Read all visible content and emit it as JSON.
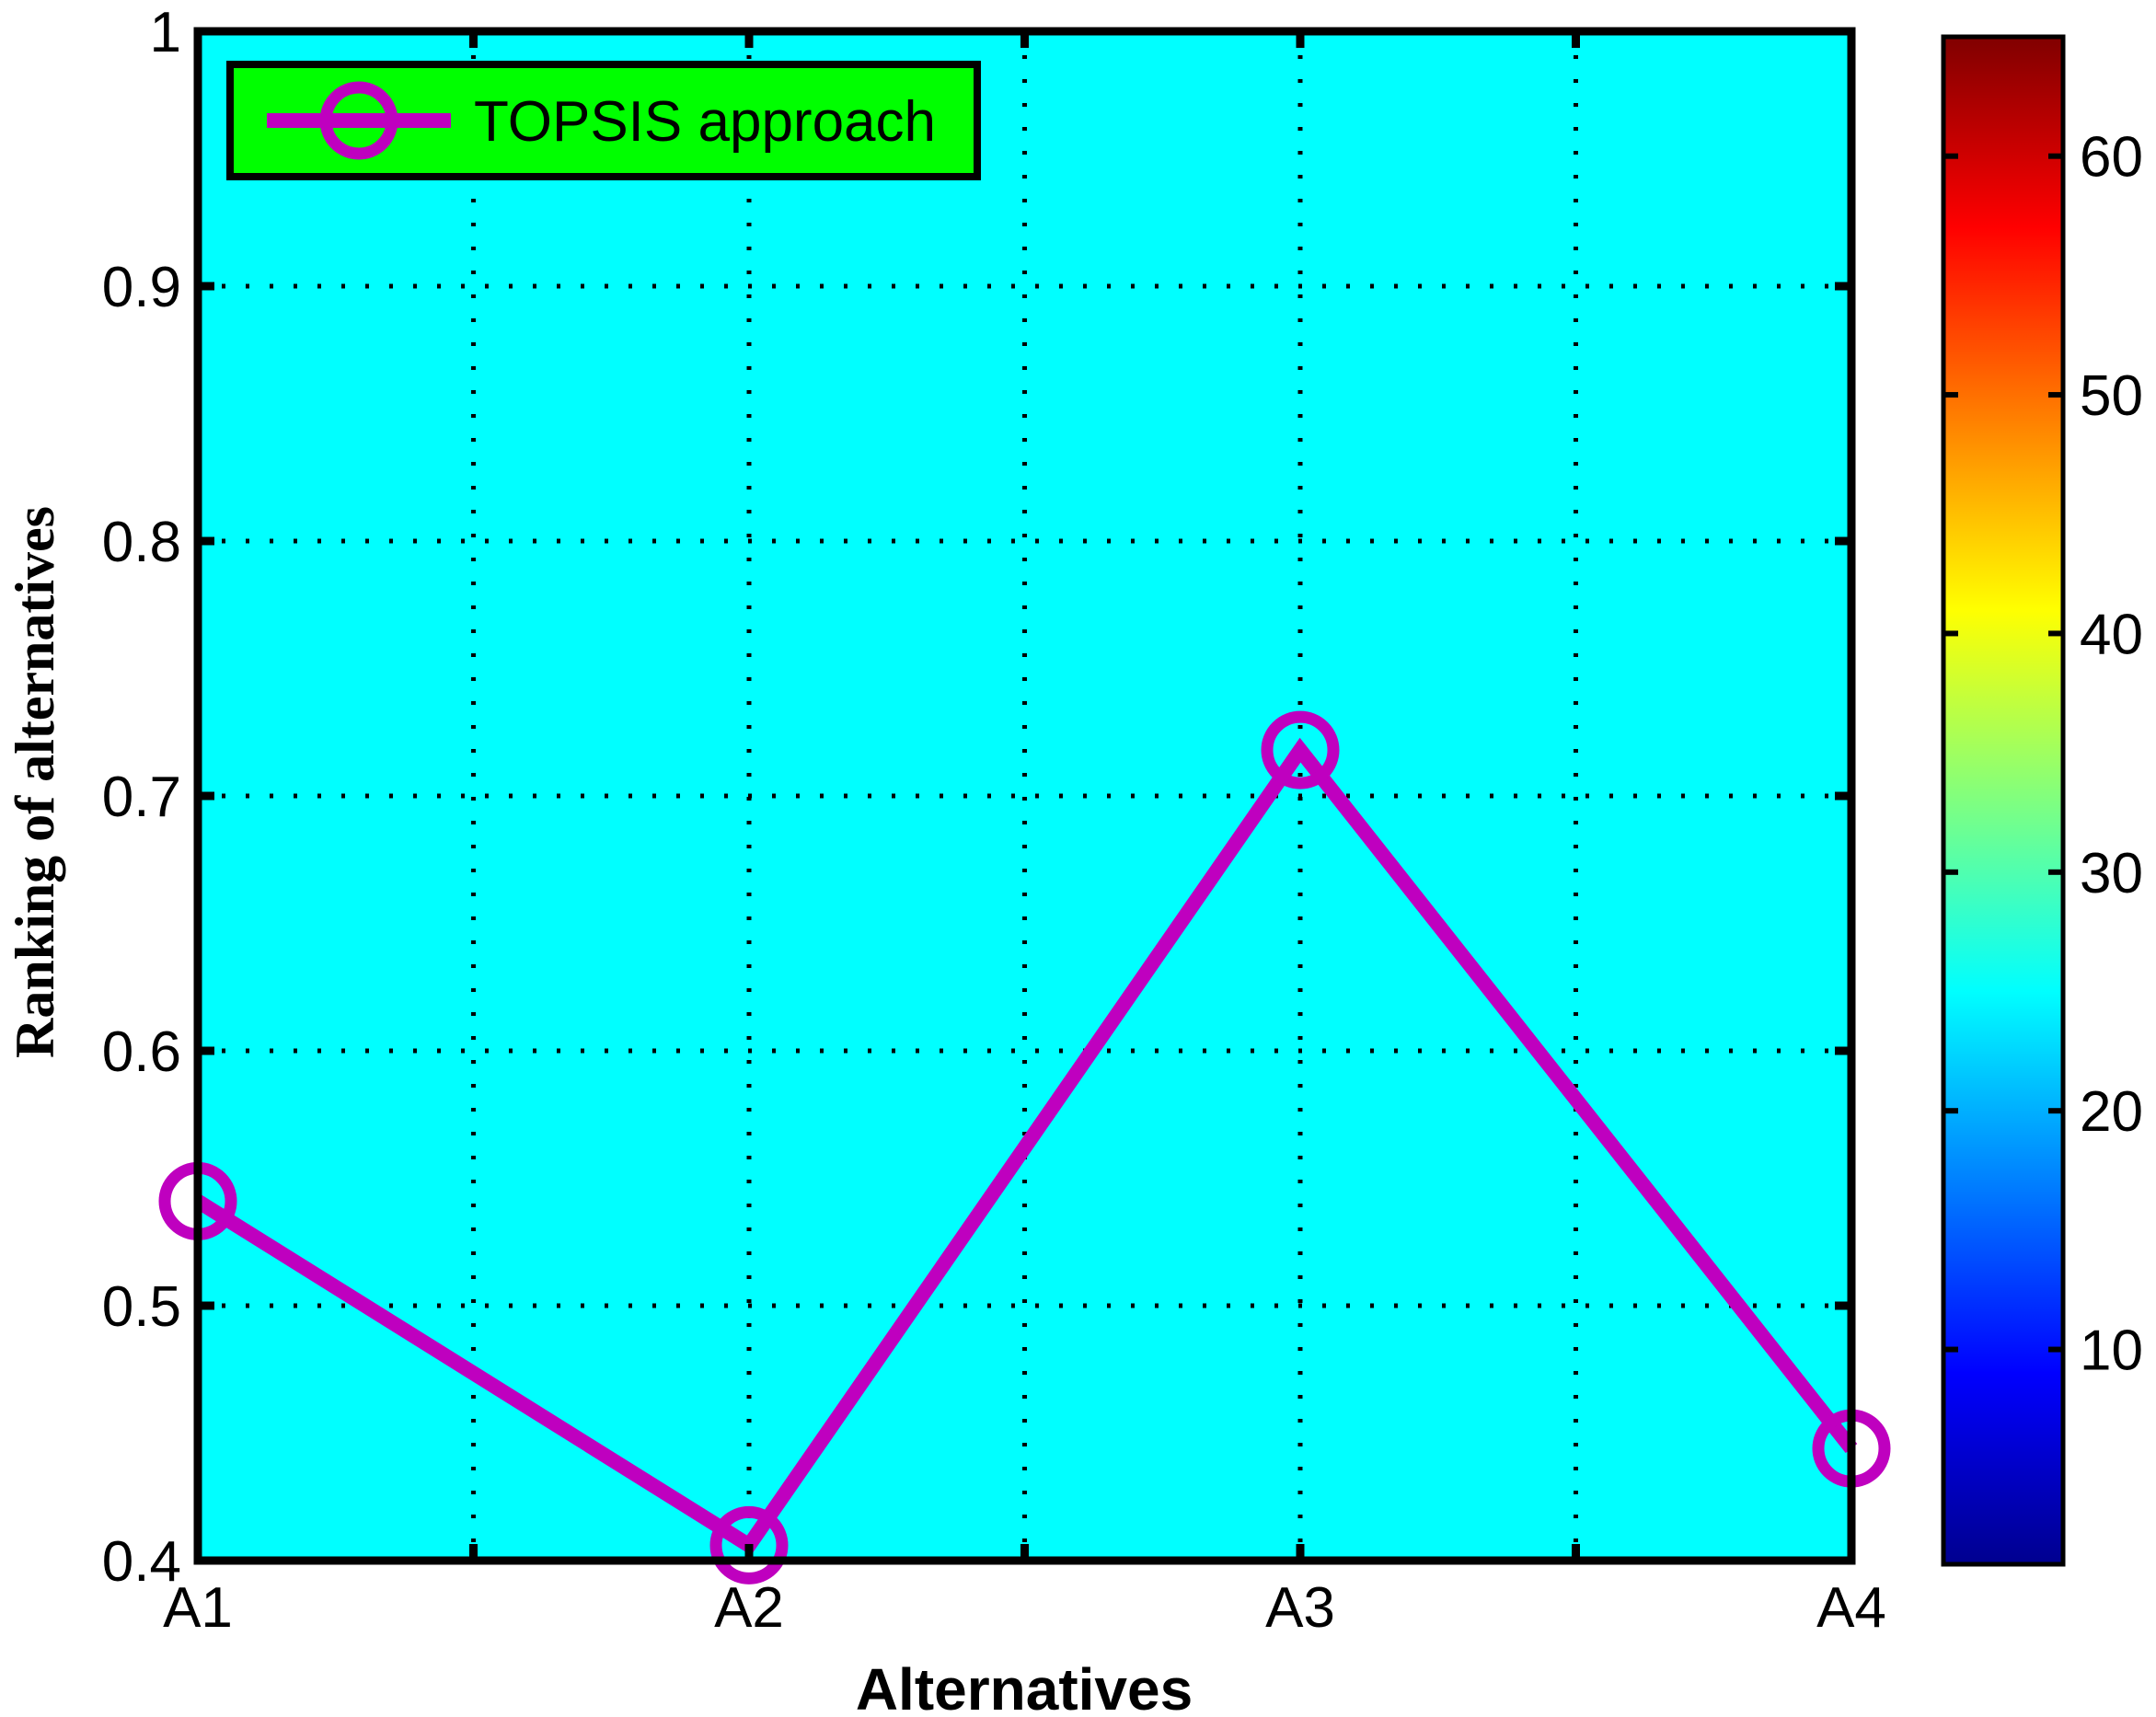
{
  "chart_data": {
    "type": "line",
    "categories": [
      "A1",
      "A2",
      "A3",
      "A4"
    ],
    "series": [
      {
        "name": "TOPSIS approach",
        "values": [
          0.541,
          0.406,
          0.718,
          0.444
        ]
      }
    ],
    "xlabel": "Alternatives",
    "ylabel": "Ranking of alternatives",
    "ylim": [
      0.4,
      1
    ],
    "yticks": [
      "0.4",
      "0.5",
      "0.6",
      "0.7",
      "0.8",
      "0.9",
      "1"
    ],
    "grid": true,
    "legend_position": "top-left",
    "colorbar": {
      "range": [
        1,
        65
      ],
      "tick_labels": [
        "10",
        "20",
        "30",
        "40",
        "50",
        "60"
      ],
      "colormap": "jet"
    },
    "colors": {
      "plot_background": "#00ffff",
      "series_line": "#bf00bf",
      "legend_background": "#00ff00",
      "frame": "#000000"
    }
  }
}
